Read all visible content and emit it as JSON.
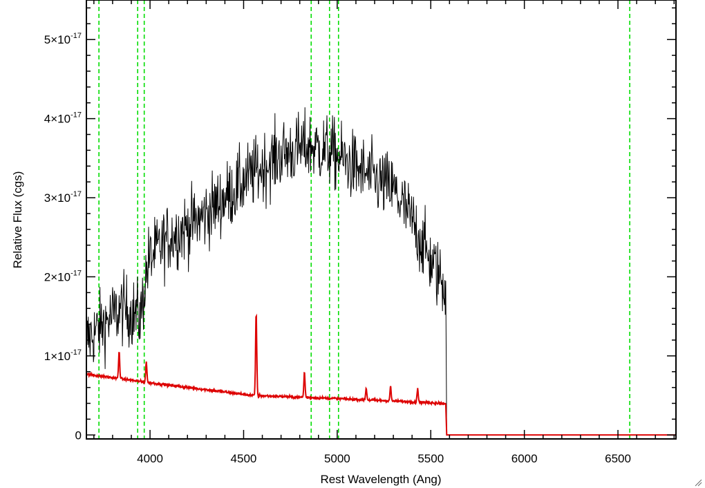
{
  "chart_data": {
    "type": "line",
    "xlabel": "Rest Wavelength (Ang)",
    "ylabel": "Relative Flux (cgs)",
    "xlim": [
      3660,
      6810
    ],
    "ylim": [
      -5e-19,
      5.5e-17
    ],
    "x_ticks": [
      4000,
      4500,
      5000,
      5500,
      6000,
      6500
    ],
    "x_tick_labels": [
      "4000",
      "4500",
      "5000",
      "5500",
      "6000",
      "6500"
    ],
    "y_ticks": [
      0,
      1e-17,
      2e-17,
      3e-17,
      4e-17,
      5e-17
    ],
    "y_tick_labels": [
      {
        "mantissa": "0",
        "exp": ""
      },
      {
        "mantissa": "1×10",
        "exp": "-17"
      },
      {
        "mantissa": "2×10",
        "exp": "-17"
      },
      {
        "mantissa": "3×10",
        "exp": "-17"
      },
      {
        "mantissa": "4×10",
        "exp": "-17"
      },
      {
        "mantissa": "5×10",
        "exp": "-17"
      }
    ],
    "grid": false,
    "vertical_lines": {
      "color": "#00dd00",
      "style": "dashed",
      "x": [
        3727,
        3934,
        3969,
        4861,
        4959,
        5007,
        6563
      ]
    },
    "series": [
      {
        "color": "#000000",
        "x_range": [
          3660,
          5580
        ],
        "envelope_x": [
          3660,
          3750,
          3850,
          3950,
          3990,
          4100,
          4250,
          4400,
          4550,
          4700,
          4850,
          4950,
          5050,
          5150,
          5300,
          5400,
          5500,
          5570
        ],
        "envelope_y": [
          1.2e-17,
          1.4e-17,
          1.6e-17,
          1.5e-17,
          2.2e-17,
          2.5e-17,
          2.7e-17,
          3e-17,
          3.3e-17,
          3.55e-17,
          3.65e-17,
          3.6e-17,
          3.45e-17,
          3.3e-17,
          3.1e-17,
          2.7e-17,
          2.2e-17,
          1.9e-17
        ],
        "noise_sigma": 3.2e-18,
        "drop_to_zero_at": 5585
      },
      {
        "color": "#dd0000",
        "continuum_x": [
          3660,
          4000,
          4550,
          5000,
          5580
        ],
        "continuum_y": [
          7.7e-18,
          6.6e-18,
          5e-18,
          4.6e-18,
          4e-18
        ],
        "drop_to_zero_at": 5585,
        "emission_lines": [
          {
            "x": 3835,
            "height": 3.4e-18
          },
          {
            "x": 3980,
            "height": 2.6e-18
          },
          {
            "x": 4567,
            "height": 1.05e-17
          },
          {
            "x": 4825,
            "height": 3.2e-18
          },
          {
            "x": 5155,
            "height": 1.5e-18
          },
          {
            "x": 5285,
            "height": 1.8e-18
          },
          {
            "x": 5430,
            "height": 1.8e-18
          }
        ]
      }
    ]
  }
}
